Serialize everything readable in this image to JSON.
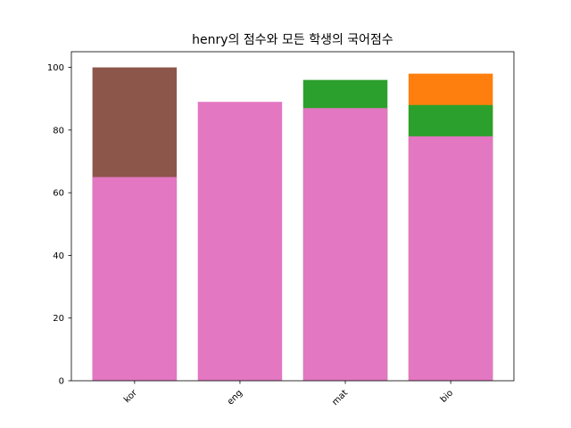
{
  "chart_data": {
    "type": "bar",
    "title": "henry의 점수와 모든 학생의 국어점수",
    "xlabel": "",
    "ylabel": "",
    "categories": [
      "kor",
      "eng",
      "mat",
      "bio"
    ],
    "ylim": [
      0,
      105
    ],
    "yticks": [
      0,
      20,
      40,
      60,
      80,
      100
    ],
    "grid": false,
    "legend": "none",
    "bars": [
      {
        "category": "kor",
        "value": 100,
        "color": "#8c564b"
      },
      {
        "category": "kor",
        "value": 65,
        "color": "#e377c2"
      },
      {
        "category": "eng",
        "value": 89,
        "color": "#e377c2"
      },
      {
        "category": "mat",
        "value": 96,
        "color": "#2ca02c"
      },
      {
        "category": "mat",
        "value": 87,
        "color": "#e377c2"
      },
      {
        "category": "bio",
        "value": 98,
        "color": "#ff7f0e"
      },
      {
        "category": "bio",
        "value": 88,
        "color": "#2ca02c"
      },
      {
        "category": "bio",
        "value": 78,
        "color": "#e377c2"
      }
    ]
  }
}
